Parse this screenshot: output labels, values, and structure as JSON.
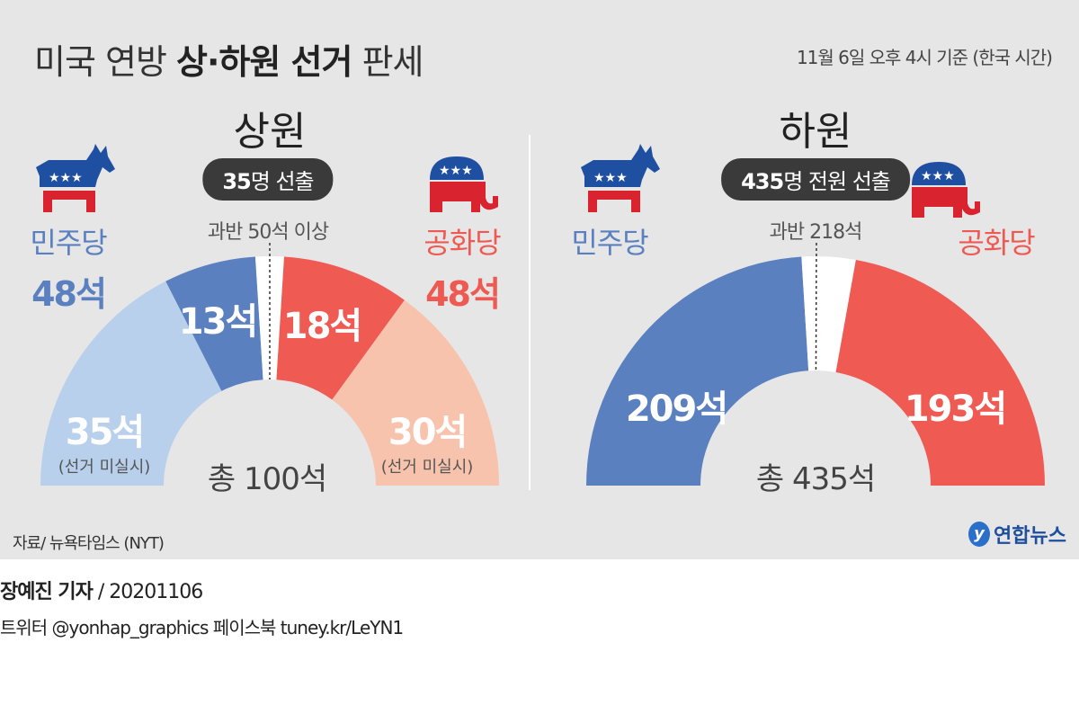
{
  "header": {
    "title_light": "미국 연방",
    "title_bold": "상·하원 선거",
    "title_end": "판세",
    "as_of": "11월 6일 오후 4시 기준 (한국 시간)"
  },
  "colors": {
    "dem": "#5b80c0",
    "dem_light": "#b9d0ec",
    "rep": "#ef5a52",
    "rep_light": "#f8c3ad",
    "undecided": "#ffffff",
    "background": "#e6e6e7"
  },
  "icons": {
    "dem": "donkey-icon",
    "rep": "elephant-icon"
  },
  "chart_data": [
    {
      "type": "pie",
      "shape": "semicircle-donut",
      "title": "상원",
      "badge_num": "35",
      "badge_text": "명 선출",
      "majority_label": "과반 50석 이상",
      "majority_value": 50,
      "total_label": "총 100석",
      "total": 100,
      "dem_label": "민주당",
      "dem_total": "48석",
      "rep_label": "공화당",
      "rep_total": "48석",
      "segments": [
        {
          "party": "dem",
          "kind": "not_up",
          "value": 35,
          "label": "35석",
          "note": "(선거 미실시)"
        },
        {
          "party": "dem",
          "kind": "won",
          "value": 13,
          "label": "13석"
        },
        {
          "party": "undecided",
          "kind": "undecided",
          "value": 4
        },
        {
          "party": "rep",
          "kind": "won",
          "value": 18,
          "label": "18석"
        },
        {
          "party": "rep",
          "kind": "not_up",
          "value": 30,
          "label": "30석",
          "note": "(선거 미실시)"
        }
      ]
    },
    {
      "type": "pie",
      "shape": "semicircle-donut",
      "title": "하원",
      "badge_num": "435",
      "badge_text": "명 전원 선출",
      "majority_label": "과반 218석",
      "majority_value": 218,
      "total_label": "총 435석",
      "total": 435,
      "dem_label": "민주당",
      "rep_label": "공화당",
      "segments": [
        {
          "party": "dem",
          "kind": "won",
          "value": 209,
          "label": "209석"
        },
        {
          "party": "undecided",
          "kind": "undecided",
          "value": 33
        },
        {
          "party": "rep",
          "kind": "won",
          "value": 193,
          "label": "193석"
        }
      ]
    }
  ],
  "footer": {
    "source": "자료/ 뉴욕타임스 (NYT)",
    "logo_text": "연합뉴스",
    "byline_name": "장예진 기자",
    "byline_date": " / 20201106",
    "social": "트위터 @yonhap_graphics  페이스북 tuney.kr/LeYN1"
  }
}
